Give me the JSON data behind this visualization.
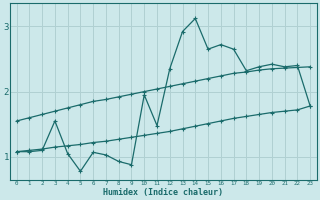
{
  "xlabel": "Humidex (Indice chaleur)",
  "xlim": [
    -0.5,
    23.5
  ],
  "ylim": [
    0.65,
    3.35
  ],
  "yticks": [
    1,
    2,
    3
  ],
  "xticks": [
    0,
    1,
    2,
    3,
    4,
    5,
    6,
    7,
    8,
    9,
    10,
    11,
    12,
    13,
    14,
    15,
    16,
    17,
    18,
    19,
    20,
    21,
    22,
    23
  ],
  "bg_color": "#cce8ea",
  "grid_color": "#b0d0d2",
  "line_color": "#1a6b6b",
  "x_data": [
    0,
    1,
    2,
    3,
    4,
    5,
    6,
    7,
    8,
    9,
    10,
    11,
    12,
    13,
    14,
    15,
    16,
    17,
    18,
    19,
    20,
    21,
    22,
    23
  ],
  "y_main": [
    1.08,
    1.08,
    1.1,
    1.55,
    1.05,
    0.78,
    1.07,
    1.03,
    0.93,
    0.88,
    1.95,
    1.48,
    2.35,
    2.92,
    3.12,
    2.65,
    2.72,
    2.65,
    2.32,
    2.38,
    2.42,
    2.38,
    2.4,
    1.78
  ],
  "y_upper": [
    1.55,
    1.6,
    1.65,
    1.7,
    1.75,
    1.8,
    1.85,
    1.88,
    1.92,
    1.96,
    2.0,
    2.04,
    2.08,
    2.12,
    2.16,
    2.2,
    2.24,
    2.28,
    2.3,
    2.33,
    2.35,
    2.36,
    2.37,
    2.38
  ],
  "y_lower": [
    1.08,
    1.1,
    1.12,
    1.15,
    1.17,
    1.19,
    1.22,
    1.24,
    1.27,
    1.3,
    1.33,
    1.36,
    1.39,
    1.43,
    1.47,
    1.51,
    1.55,
    1.59,
    1.62,
    1.65,
    1.68,
    1.7,
    1.72,
    1.78
  ]
}
